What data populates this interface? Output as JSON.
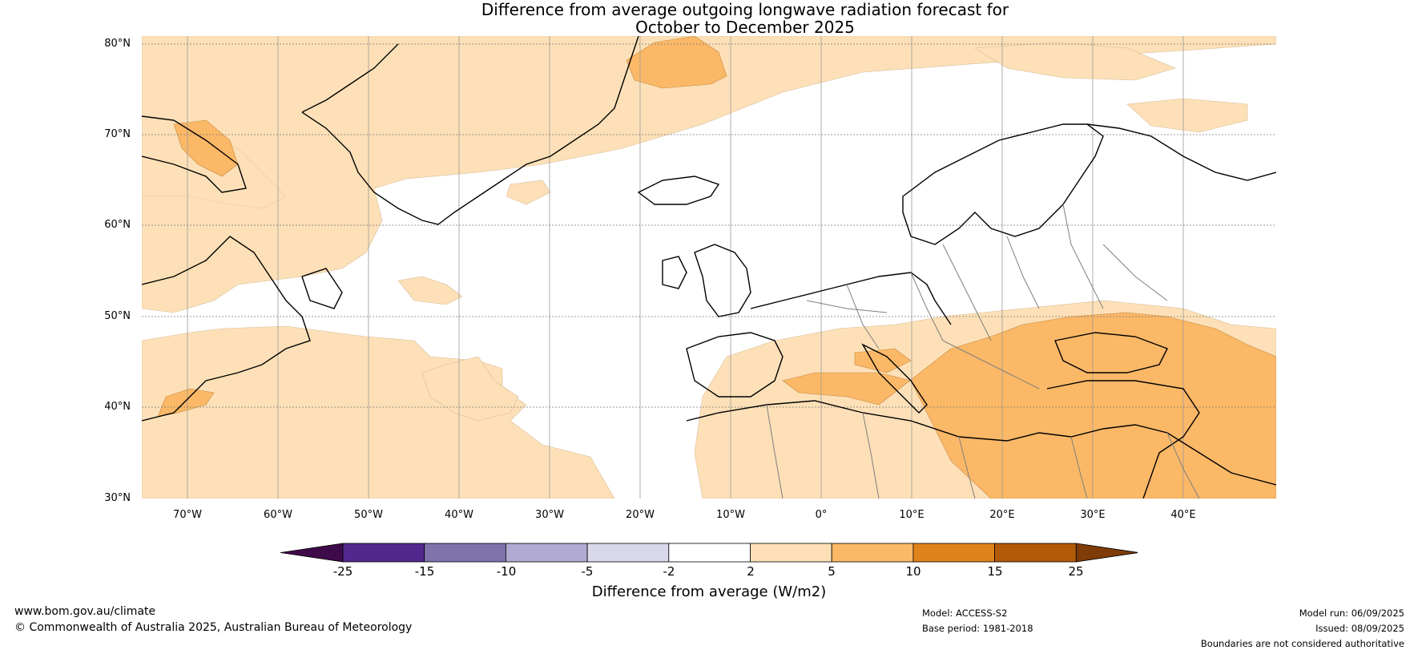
{
  "title": {
    "line1": "Difference from average outgoing longwave radiation forecast for",
    "line2": "October to December 2025"
  },
  "map": {
    "lat_labels": [
      "80°N",
      "70°N",
      "60°N",
      "50°N",
      "40°N",
      "30°N"
    ],
    "lat_values": [
      80,
      70,
      60,
      50,
      40,
      30
    ],
    "lon_labels": [
      "70°W",
      "60°W",
      "50°W",
      "40°W",
      "30°W",
      "20°W",
      "10°W",
      "0°",
      "10°E",
      "20°E",
      "30°E",
      "40°E"
    ],
    "lon_values": [
      -70,
      -60,
      -50,
      -40,
      -30,
      -20,
      -10,
      0,
      10,
      20,
      30,
      40
    ],
    "extent": {
      "lon_min": -75,
      "lon_max": 50,
      "lat_min": 30,
      "lat_max": 81
    },
    "colors": {
      "light_positive": "#fde0b7",
      "medium_positive": "#fbb867",
      "land_outline": "#000000",
      "borders": "#7f7f7f",
      "grid": "#999999"
    }
  },
  "colorbar": {
    "label": "Difference from average (W/m2)",
    "ticks": [
      "-25",
      "-15",
      "-10",
      "-5",
      "-2",
      "2",
      "5",
      "10",
      "15",
      "25"
    ],
    "colors": [
      "#3f0a4a",
      "#54278f",
      "#8073ad",
      "#b1abd3",
      "#d9d8eb",
      "#ffffff",
      "#fde0b7",
      "#fbb867",
      "#e0821c",
      "#b15a08",
      "#7f3b08"
    ]
  },
  "footer": {
    "url": "www.bom.gov.au/climate",
    "copyright": "© Commonwealth of Australia 2025, Australian Bureau of Meteorology",
    "model": "Model: ACCESS-S2",
    "base_period": "Base period: 1981-2018",
    "model_run": "Model run: 06/09/2025",
    "issued": "Issued: 08/09/2025",
    "disclaimer": "Boundaries are not considered authoritative"
  }
}
